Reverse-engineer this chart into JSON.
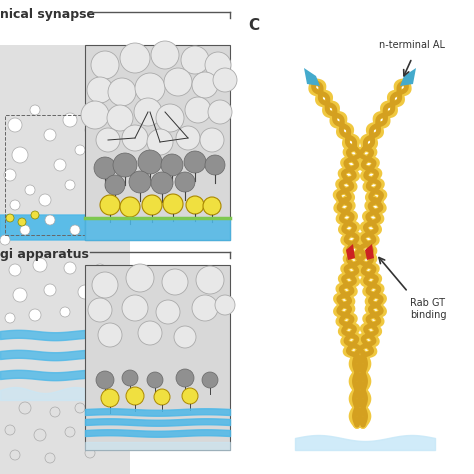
{
  "bg_color": "#ffffff",
  "panel_left_bg": "#e8e8e8",
  "panel_box_bg": "#d8d8d8",
  "label_top_text": "nical synapse",
  "label_bottom_text": "gi apparatus",
  "label_c": "C",
  "label_nterminal": "n-terminal AL",
  "label_rab": "Rab GT\nbinding",
  "blue_membrane_color": "#4db8e8",
  "green_line_color": "#7ec850",
  "yellow_ball_color": "#f0e040",
  "gray_ball_light": "#c0c0c0",
  "gray_ball_dark": "#888888",
  "gold_helix_color": "#d4a020",
  "gold_light_color": "#f0c840",
  "red_accent_color": "#cc2222",
  "cyan_tip_color": "#44aacc",
  "light_blue_membrane": "#c8e8f8",
  "arrow_color": "#222222"
}
